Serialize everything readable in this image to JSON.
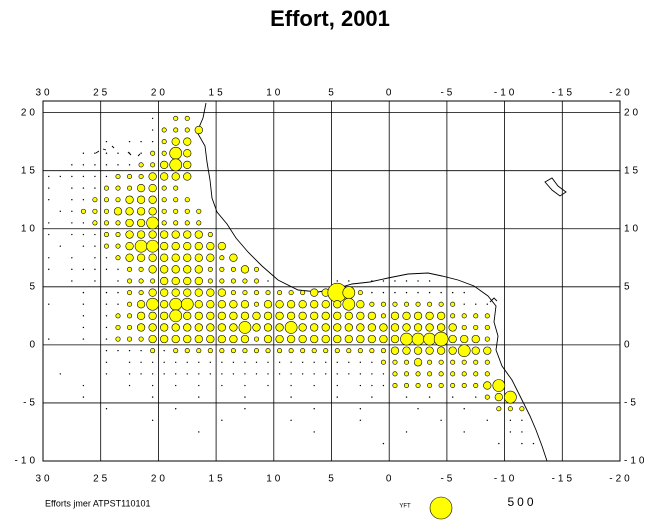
{
  "chart_data": {
    "type": "bubble-map",
    "title": "Effort, 2001",
    "footer": "Efforts jmer ATPST110101",
    "size_legend": {
      "label": "YFT",
      "value": 500
    },
    "color": "#ffff00",
    "xlim": [
      30,
      -20
    ],
    "ylim": [
      -10,
      21
    ],
    "xticks": [
      30,
      25,
      20,
      15,
      10,
      5,
      0,
      -5,
      -10,
      -15,
      -20
    ],
    "yticks": [
      20,
      15,
      10,
      5,
      0,
      -5,
      -10
    ],
    "grid": true,
    "rows": [
      {
        "lat": 19.5,
        "lon": [
          20.5,
          18.5,
          17.5
        ],
        "effort": [
          2,
          20,
          20
        ]
      },
      {
        "lat": 18.5,
        "lon": [
          20.5,
          19.5,
          18.5,
          17.5,
          16.5
        ],
        "effort": [
          2,
          20,
          20,
          20,
          60
        ]
      },
      {
        "lat": 17.5,
        "lon": [
          24.5,
          22.5,
          21.5,
          20.5,
          19.5,
          18.5,
          17.5
        ],
        "effort": [
          2,
          2,
          2,
          2,
          20,
          60,
          60
        ]
      },
      {
        "lat": 16.5,
        "lon": [
          26.5,
          25.5,
          24.5,
          23.5,
          22.5,
          21.5,
          20.5,
          19.5,
          18.5,
          17.5
        ],
        "effort": [
          2,
          2,
          2,
          2,
          2,
          2,
          20,
          20,
          150,
          60
        ]
      },
      {
        "lat": 15.5,
        "lon": [
          27.5,
          26.5,
          25.5,
          24.5,
          23.5,
          22.5,
          21.5,
          20.5,
          19.5,
          18.5,
          17.5
        ],
        "effort": [
          2,
          2,
          2,
          2,
          2,
          2,
          20,
          20,
          60,
          150,
          60
        ]
      },
      {
        "lat": 14.5,
        "lon": [
          29.5,
          28.5,
          27.5,
          26.5,
          25.5,
          24.5,
          23.5,
          22.5,
          21.5,
          20.5,
          19.5,
          18.5,
          17.5
        ],
        "effort": [
          2,
          2,
          2,
          2,
          2,
          2,
          20,
          20,
          20,
          60,
          60,
          60,
          60
        ]
      },
      {
        "lat": 13.5,
        "lon": [
          29.5,
          27.5,
          26.5,
          25.5,
          24.5,
          23.5,
          22.5,
          21.5,
          20.5,
          19.5,
          18.5
        ],
        "effort": [
          2,
          2,
          2,
          2,
          20,
          20,
          20,
          60,
          60,
          20,
          20
        ]
      },
      {
        "lat": 12.5,
        "lon": [
          29.5,
          27.5,
          26.5,
          25.5,
          24.5,
          23.5,
          22.5,
          21.5,
          20.5,
          19.5,
          18.5,
          17.5
        ],
        "effort": [
          2,
          2,
          2,
          20,
          20,
          20,
          60,
          60,
          60,
          20,
          20,
          20
        ]
      },
      {
        "lat": 11.5,
        "lon": [
          28.5,
          27.5,
          26.5,
          25.5,
          24.5,
          23.5,
          22.5,
          21.5,
          20.5,
          19.5,
          18.5,
          17.5,
          16.5
        ],
        "effort": [
          2,
          2,
          20,
          20,
          20,
          60,
          60,
          60,
          60,
          20,
          20,
          20,
          20
        ]
      },
      {
        "lat": 10.5,
        "lon": [
          29.5,
          27.5,
          26.5,
          25.5,
          24.5,
          23.5,
          22.5,
          21.5,
          20.5,
          19.5,
          18.5,
          17.5,
          16.5
        ],
        "effort": [
          2,
          2,
          2,
          20,
          20,
          20,
          60,
          60,
          150,
          20,
          20,
          20,
          20
        ]
      },
      {
        "lat": 9.5,
        "lon": [
          29.5,
          27.5,
          26.5,
          25.5,
          24.5,
          23.5,
          22.5,
          21.5,
          20.5,
          19.5,
          18.5,
          17.5,
          16.5,
          15.5
        ],
        "effort": [
          2,
          2,
          2,
          2,
          20,
          20,
          60,
          60,
          60,
          60,
          60,
          60,
          60,
          20
        ]
      },
      {
        "lat": 8.5,
        "lon": [
          28.5,
          26.5,
          25.5,
          24.5,
          23.5,
          22.5,
          21.5,
          20.5,
          19.5,
          18.5,
          17.5,
          16.5,
          15.5,
          14.5
        ],
        "effort": [
          2,
          2,
          2,
          20,
          20,
          60,
          150,
          150,
          60,
          60,
          60,
          60,
          60,
          60
        ]
      },
      {
        "lat": 7.5,
        "lon": [
          29.5,
          27.5,
          25.5,
          24.5,
          23.5,
          22.5,
          21.5,
          20.5,
          19.5,
          18.5,
          17.5,
          16.5,
          15.5,
          14.5,
          13.5
        ],
        "effort": [
          2,
          2,
          2,
          2,
          20,
          60,
          60,
          60,
          60,
          60,
          60,
          60,
          60,
          20,
          60
        ]
      },
      {
        "lat": 6.5,
        "lon": [
          29.5,
          27.5,
          26.5,
          25.5,
          24.5,
          23.5,
          22.5,
          21.5,
          20.5,
          19.5,
          18.5,
          17.5,
          16.5,
          15.5,
          14.5,
          13.5,
          12.5,
          11.5
        ],
        "effort": [
          2,
          2,
          2,
          2,
          2,
          2,
          20,
          20,
          60,
          60,
          60,
          60,
          60,
          20,
          20,
          20,
          60,
          20
        ]
      },
      {
        "lat": 5.5,
        "lon": [
          27.5,
          25.5,
          23.5,
          22.5,
          21.5,
          20.5,
          19.5,
          18.5,
          17.5,
          16.5,
          15.5,
          14.5,
          13.5,
          12.5,
          11.5,
          10.5,
          4.5,
          3.5,
          1.5,
          0.5,
          -0.5,
          -1.5,
          -2.5,
          -3.5
        ],
        "effort": [
          2,
          2,
          2,
          20,
          20,
          20,
          60,
          60,
          60,
          60,
          20,
          20,
          20,
          20,
          20,
          2,
          2,
          2,
          2,
          2,
          2,
          2,
          2,
          2
        ]
      },
      {
        "lat": 4.5,
        "lon": [
          26.5,
          24.5,
          23.5,
          22.5,
          21.5,
          20.5,
          19.5,
          18.5,
          17.5,
          16.5,
          15.5,
          14.5,
          13.5,
          12.5,
          11.5,
          10.5,
          9.5,
          8.5,
          7.5,
          6.5,
          5.5,
          4.5,
          3.5,
          2.5,
          1.5,
          0.5,
          -0.5,
          -1.5,
          -2.5,
          -3.5,
          -4.5,
          -5.5,
          -6.5
        ],
        "effort": [
          2,
          2,
          2,
          20,
          20,
          60,
          60,
          60,
          60,
          60,
          60,
          60,
          20,
          20,
          20,
          20,
          20,
          20,
          20,
          60,
          60,
          370,
          150,
          20,
          2,
          2,
          2,
          2,
          2,
          2,
          2,
          2,
          2
        ]
      },
      {
        "lat": 3.5,
        "lon": [
          29.5,
          26.5,
          24.5,
          23.5,
          22.5,
          21.5,
          20.5,
          19.5,
          18.5,
          17.5,
          16.5,
          15.5,
          14.5,
          13.5,
          12.5,
          11.5,
          10.5,
          9.5,
          8.5,
          7.5,
          6.5,
          5.5,
          4.5,
          3.5,
          2.5,
          1.5,
          0.5,
          -0.5,
          -1.5,
          -2.5,
          -3.5,
          -4.5,
          -5.5,
          -6.5,
          -7.5,
          -8.5
        ],
        "effort": [
          2,
          2,
          2,
          2,
          20,
          60,
          150,
          60,
          150,
          150,
          60,
          60,
          60,
          60,
          60,
          20,
          60,
          60,
          60,
          60,
          60,
          60,
          60,
          150,
          60,
          20,
          20,
          20,
          20,
          20,
          20,
          20,
          20,
          2,
          2,
          2
        ]
      },
      {
        "lat": 2.5,
        "lon": [
          26.5,
          24.5,
          23.5,
          22.5,
          21.5,
          20.5,
          19.5,
          18.5,
          17.5,
          16.5,
          15.5,
          14.5,
          13.5,
          12.5,
          11.5,
          10.5,
          9.5,
          8.5,
          7.5,
          6.5,
          5.5,
          4.5,
          3.5,
          2.5,
          1.5,
          0.5,
          -0.5,
          -1.5,
          -2.5,
          -3.5,
          -4.5,
          -5.5,
          -6.5,
          -7.5,
          -8.5
        ],
        "effort": [
          2,
          2,
          20,
          20,
          60,
          60,
          60,
          150,
          60,
          60,
          60,
          60,
          60,
          60,
          60,
          60,
          60,
          60,
          60,
          60,
          60,
          60,
          60,
          60,
          60,
          20,
          60,
          60,
          60,
          60,
          60,
          20,
          20,
          20,
          20
        ]
      },
      {
        "lat": 1.5,
        "lon": [
          26.5,
          24.5,
          23.5,
          22.5,
          21.5,
          20.5,
          19.5,
          18.5,
          17.5,
          16.5,
          15.5,
          14.5,
          13.5,
          12.5,
          11.5,
          10.5,
          9.5,
          8.5,
          7.5,
          6.5,
          5.5,
          4.5,
          3.5,
          2.5,
          1.5,
          0.5,
          -0.5,
          -1.5,
          -2.5,
          -3.5,
          -4.5,
          -5.5,
          -6.5,
          -7.5,
          -8.5
        ],
        "effort": [
          2,
          2,
          20,
          20,
          60,
          60,
          60,
          60,
          60,
          60,
          60,
          60,
          60,
          150,
          60,
          60,
          60,
          150,
          60,
          60,
          60,
          60,
          60,
          60,
          60,
          60,
          60,
          60,
          60,
          60,
          60,
          60,
          20,
          20,
          20
        ]
      },
      {
        "lat": 0.5,
        "lon": [
          29.5,
          26.5,
          24.5,
          23.5,
          22.5,
          21.5,
          20.5,
          19.5,
          18.5,
          17.5,
          16.5,
          15.5,
          14.5,
          13.5,
          12.5,
          11.5,
          10.5,
          9.5,
          8.5,
          7.5,
          6.5,
          5.5,
          4.5,
          3.5,
          2.5,
          1.5,
          0.5,
          -0.5,
          -1.5,
          -2.5,
          -3.5,
          -4.5,
          -5.5,
          -6.5,
          -7.5,
          -8.5
        ],
        "effort": [
          2,
          2,
          2,
          20,
          20,
          20,
          60,
          60,
          60,
          60,
          60,
          60,
          60,
          60,
          60,
          20,
          60,
          60,
          60,
          60,
          60,
          60,
          60,
          60,
          60,
          60,
          60,
          60,
          150,
          150,
          150,
          200,
          60,
          60,
          60,
          20
        ]
      },
      {
        "lat": -0.5,
        "lon": [
          24.5,
          23.5,
          22.5,
          21.5,
          20.5,
          19.5,
          18.5,
          17.5,
          16.5,
          15.5,
          14.5,
          13.5,
          12.5,
          11.5,
          10.5,
          9.5,
          8.5,
          7.5,
          6.5,
          5.5,
          4.5,
          3.5,
          2.5,
          1.5,
          0.5,
          -0.5,
          -1.5,
          -2.5,
          -3.5,
          -4.5,
          -5.5,
          -6.5,
          -7.5,
          -8.5
        ],
        "effort": [
          2,
          2,
          2,
          2,
          20,
          2,
          20,
          20,
          20,
          20,
          20,
          20,
          20,
          20,
          20,
          20,
          20,
          20,
          20,
          20,
          20,
          20,
          20,
          20,
          20,
          60,
          60,
          60,
          60,
          60,
          60,
          150,
          60,
          60
        ]
      },
      {
        "lat": -1.5,
        "lon": [
          24.5,
          22.5,
          21.5,
          20.5,
          19.5,
          18.5,
          17.5,
          16.5,
          15.5,
          14.5,
          13.5,
          12.5,
          11.5,
          10.5,
          9.5,
          8.5,
          7.5,
          6.5,
          5.5,
          4.5,
          3.5,
          2.5,
          1.5,
          0.5,
          -0.5,
          -1.5,
          -2.5,
          -3.5,
          -4.5,
          -5.5,
          -6.5,
          -7.5,
          -8.5
        ],
        "effort": [
          2,
          2,
          2,
          2,
          2,
          2,
          2,
          2,
          2,
          2,
          2,
          2,
          2,
          2,
          2,
          2,
          2,
          2,
          2,
          2,
          2,
          2,
          2,
          20,
          20,
          20,
          60,
          20,
          20,
          20,
          20,
          20,
          20
        ]
      },
      {
        "lat": -2.5,
        "lon": [
          28.5,
          24.5,
          22.5,
          21.5,
          20.5,
          19.5,
          18.5,
          17.5,
          16.5,
          15.5,
          14.5,
          13.5,
          12.5,
          11.5,
          10.5,
          9.5,
          8.5,
          7.5,
          6.5,
          5.5,
          4.5,
          3.5,
          2.5,
          1.5,
          0.5,
          -0.5,
          -1.5,
          -2.5,
          -3.5,
          -4.5,
          -5.5,
          -6.5,
          -7.5,
          -8.5
        ],
        "effort": [
          2,
          2,
          2,
          2,
          2,
          2,
          2,
          2,
          2,
          2,
          2,
          2,
          2,
          2,
          2,
          2,
          2,
          2,
          2,
          2,
          2,
          2,
          2,
          2,
          2,
          20,
          20,
          20,
          20,
          20,
          20,
          20,
          20,
          20
        ]
      },
      {
        "lat": -3.5,
        "lon": [
          26.5,
          22.5,
          20.5,
          18.5,
          16.5,
          14.5,
          12.5,
          10.5,
          8.5,
          6.5,
          4.5,
          2.5,
          1.5,
          0.5,
          -0.5,
          -1.5,
          -2.5,
          -3.5,
          -4.5,
          -5.5,
          -6.5,
          -7.5,
          -8.5,
          -9.5
        ],
        "effort": [
          2,
          2,
          2,
          2,
          2,
          2,
          2,
          2,
          2,
          2,
          2,
          2,
          2,
          2,
          20,
          20,
          20,
          20,
          20,
          20,
          20,
          20,
          60,
          150
        ]
      },
      {
        "lat": -4.5,
        "lon": [
          26.5,
          20.5,
          16.5,
          12.5,
          8.5,
          4.5,
          1.5,
          -1.5,
          -3.5,
          -5.5,
          -7.5,
          -8.5,
          -9.5,
          -10.5
        ],
        "effort": [
          2,
          2,
          2,
          2,
          2,
          2,
          2,
          2,
          2,
          2,
          2,
          20,
          60,
          150
        ]
      },
      {
        "lat": -5.5,
        "lon": [
          24.5,
          18.5,
          12.5,
          6.5,
          2.5,
          -2.5,
          -6.5,
          -9.5,
          -10.5,
          -11.5
        ],
        "effort": [
          2,
          2,
          2,
          2,
          2,
          2,
          2,
          20,
          20,
          20
        ]
      },
      {
        "lat": -6.5,
        "lon": [
          20.5,
          14.5,
          8.5,
          2.5,
          -4.5,
          -8.5,
          -10.5,
          -11.5
        ],
        "effort": [
          2,
          2,
          2,
          2,
          2,
          2,
          2,
          2
        ]
      },
      {
        "lat": -7.5,
        "lon": [
          16.5,
          6.5,
          -1.5,
          -6.5,
          -10.5,
          -11.5
        ],
        "effort": [
          2,
          2,
          2,
          2,
          2,
          2
        ]
      },
      {
        "lat": -8.5,
        "lon": [
          0.5,
          -9.5,
          -11.5,
          -12.5
        ],
        "effort": [
          2,
          2,
          2,
          2
        ]
      }
    ]
  }
}
